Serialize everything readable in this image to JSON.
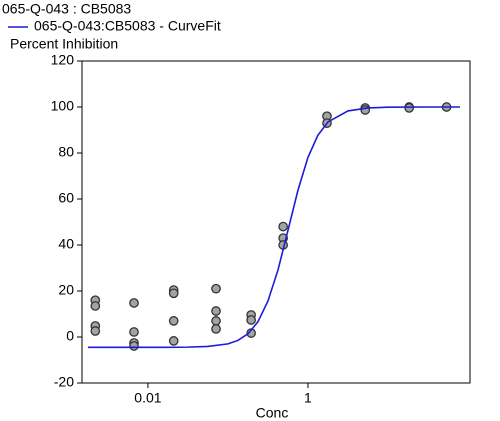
{
  "chart_data": {
    "type": "scatter",
    "title": "065-Q-043  : CB5083",
    "y_label": "Percent Inhibition",
    "x_label": "Conc",
    "log_x": true,
    "xlim": [
      0.0015,
      106
    ],
    "ylim": [
      -20,
      120
    ],
    "xticks": [
      0.01,
      1
    ],
    "yticks": [
      -20,
      0,
      20,
      40,
      60,
      80,
      100,
      120
    ],
    "series": [
      {
        "type": "scatter",
        "color": "#a3a3a3",
        "x": [
          0.0022,
          0.0022,
          0.0022,
          0.0022,
          0.0067,
          0.0067,
          0.0067,
          0.0067,
          0.021,
          0.021,
          0.021,
          0.021,
          0.071,
          0.071,
          0.071,
          0.071,
          0.195,
          0.195,
          0.195,
          0.49,
          0.49,
          0.49,
          1.73,
          1.73,
          5.2,
          5.2,
          18.4,
          18.4,
          54
        ],
        "values": [
          16,
          13.5,
          4.8,
          2.6,
          14.8,
          2.2,
          -2.6,
          -3.9,
          20.4,
          19,
          7,
          -1.7,
          21,
          11.3,
          7,
          3.5,
          9.6,
          7.4,
          1.7,
          48,
          43,
          40,
          96,
          93,
          99.6,
          98.7,
          100,
          99.6,
          100
        ]
      },
      {
        "type": "line",
        "name": "065-Q-043:CB5083 - CurveFit",
        "color": "#1c1cd8",
        "x": [
          0.00178,
          0.00562,
          0.0178,
          0.0316,
          0.0562,
          0.1,
          0.133,
          0.178,
          0.237,
          0.316,
          0.422,
          0.562,
          0.75,
          1,
          1.33,
          1.78,
          3.16,
          5.62,
          10,
          31.6,
          79.4
        ],
        "values": [
          -4.5,
          -4.5,
          -4.5,
          -4.4,
          -4.1,
          -3,
          -1.5,
          1.4,
          6.6,
          15.6,
          29.1,
          46.3,
          63.8,
          78.1,
          87.7,
          93.5,
          98.3,
          99.6,
          99.9,
          100,
          100
        ]
      }
    ]
  }
}
